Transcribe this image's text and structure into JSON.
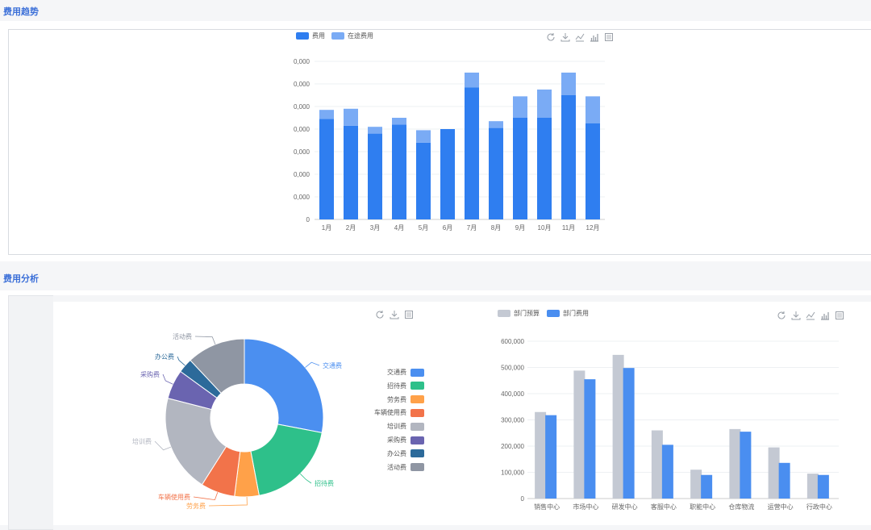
{
  "sections": {
    "trend_title": "费用趋势",
    "analysis_title": "费用分析"
  },
  "colors": {
    "expense": "#2f7ef0",
    "in_transit": "#7aabf5",
    "budget": "#c4c9d3",
    "dept_expense": "#4a8ef0"
  },
  "trend_legend": {
    "expense": "费用",
    "in_transit": "在途费用"
  },
  "icons": [
    "refresh-icon",
    "download-icon",
    "line-chart-icon",
    "bar-chart-icon",
    "data-view-icon"
  ],
  "chart_data": [
    {
      "type": "bar",
      "stacked": true,
      "categories": [
        "1月",
        "2月",
        "3月",
        "4月",
        "5月",
        "6月",
        "7月",
        "8月",
        "9月",
        "10月",
        "11月",
        "12月"
      ],
      "y_tick_labels": [
        "0",
        "0,000",
        "0,000",
        "0,000",
        "0,000",
        "0,000",
        "0,000",
        "0,000"
      ],
      "ylim": [
        0,
        7
      ],
      "series": [
        {
          "name": "费用",
          "values": [
            4.45,
            4.15,
            3.8,
            4.2,
            3.4,
            4.0,
            5.85,
            4.05,
            4.5,
            4.5,
            5.5,
            4.25
          ]
        },
        {
          "name": "在途费用",
          "values": [
            0.4,
            0.75,
            0.3,
            0.3,
            0.55,
            0,
            0.65,
            0.3,
            0.95,
            1.25,
            1.0,
            1.2
          ]
        }
      ],
      "legend_position": "top-left",
      "grid": true
    },
    {
      "type": "pie",
      "donut": true,
      "labels": [
        "交通费",
        "招待费",
        "劳务费",
        "车辆使用费",
        "培训费",
        "采购费",
        "办公费",
        "活动费"
      ],
      "values": [
        28,
        19,
        5,
        7,
        20,
        6,
        3,
        12
      ],
      "colors": [
        "#4b8ff0",
        "#2ec08a",
        "#ffa149",
        "#f2734a",
        "#b2b6c0",
        "#6a64b0",
        "#2c6a9a",
        "#8f96a3"
      ],
      "legend_position": "right"
    },
    {
      "type": "bar",
      "categories": [
        "销售中心",
        "市场中心",
        "研发中心",
        "客服中心",
        "职能中心",
        "仓库物流",
        "运营中心",
        "行政中心"
      ],
      "series": [
        {
          "name": "部门预算",
          "values": [
            330000,
            488000,
            548000,
            260000,
            110000,
            265000,
            195000,
            95000
          ]
        },
        {
          "name": "部门费用",
          "values": [
            318000,
            455000,
            498000,
            205000,
            90000,
            255000,
            136000,
            90000
          ]
        }
      ],
      "y_tick_labels": [
        "0",
        "100,000",
        "200,000",
        "300,000",
        "400,000",
        "500,000",
        "600,000"
      ],
      "ylim": [
        0,
        600000
      ],
      "legend_position": "top-left",
      "grid": true
    }
  ]
}
